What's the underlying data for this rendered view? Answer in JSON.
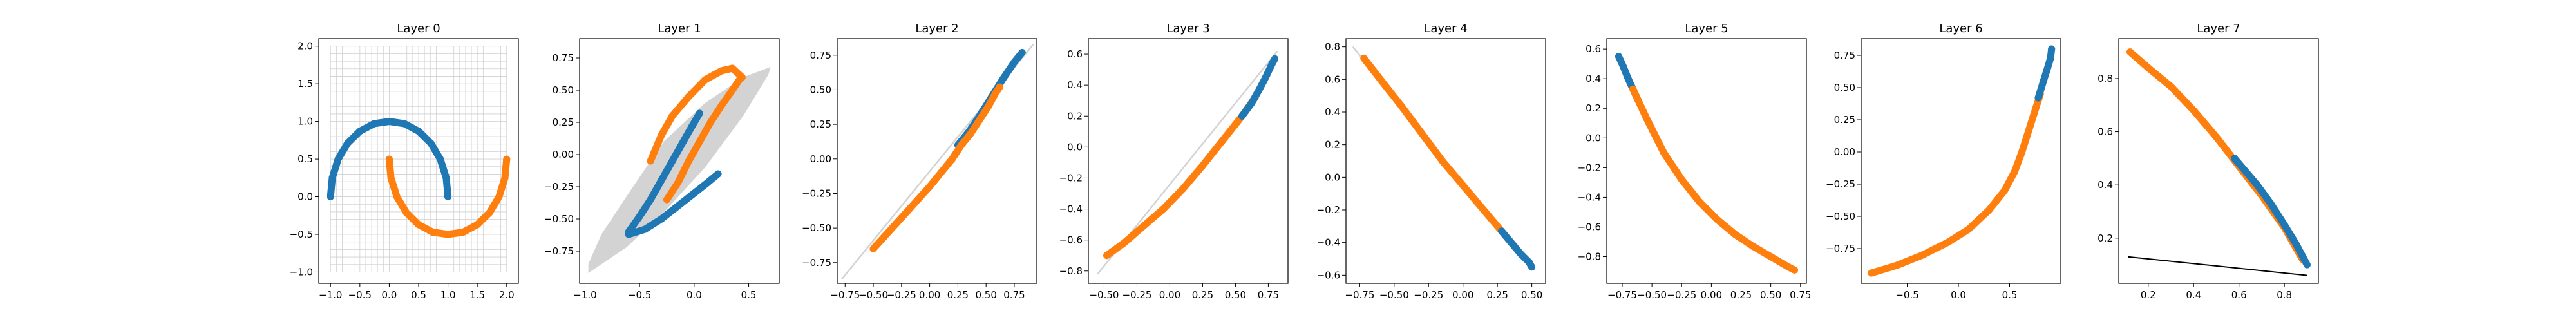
{
  "colors": {
    "blue": "#1f77b4",
    "orange": "#ff7f0e",
    "band": "#d3d3d3",
    "grid": "#cfcfcf",
    "line": "#000000"
  },
  "chart_data": [
    {
      "type": "scatter",
      "title": "Layer 0",
      "xlim": [
        -1.2,
        2.2
      ],
      "ylim": [
        -1.15,
        2.1
      ],
      "xticks": [
        -1.0,
        -0.5,
        0.0,
        0.5,
        1.0,
        1.5,
        2.0
      ],
      "yticks": [
        -1.0,
        -0.5,
        0.0,
        0.5,
        1.0,
        1.5,
        2.0
      ],
      "tick_labels_x": [
        "−1.0",
        "−0.5",
        "0.0",
        "0.5",
        "1.0",
        "1.5",
        "2.0"
      ],
      "tick_labels_y": [
        "−1.0",
        "−0.5",
        "0.0",
        "0.5",
        "1.0",
        "1.5",
        "2.0"
      ],
      "grid": {
        "xmin": -1.0,
        "xmax": 2.0,
        "ymin": -1.0,
        "ymax": 2.0,
        "step": 0.1
      },
      "series": [
        {
          "color": "blue",
          "points": [
            [
              -1.0,
              0.0
            ],
            [
              -0.97,
              0.25
            ],
            [
              -0.87,
              0.5
            ],
            [
              -0.71,
              0.71
            ],
            [
              -0.5,
              0.87
            ],
            [
              -0.26,
              0.97
            ],
            [
              0.0,
              1.0
            ],
            [
              0.26,
              0.97
            ],
            [
              0.5,
              0.87
            ],
            [
              0.71,
              0.71
            ],
            [
              0.87,
              0.5
            ],
            [
              0.97,
              0.25
            ],
            [
              1.0,
              0.0
            ]
          ]
        },
        {
          "color": "orange",
          "points": [
            [
              0.0,
              0.5
            ],
            [
              0.03,
              0.25
            ],
            [
              0.13,
              0.0
            ],
            [
              0.29,
              -0.21
            ],
            [
              0.5,
              -0.37
            ],
            [
              0.74,
              -0.47
            ],
            [
              1.0,
              -0.5
            ],
            [
              1.26,
              -0.47
            ],
            [
              1.5,
              -0.37
            ],
            [
              1.71,
              -0.21
            ],
            [
              1.87,
              0.0
            ],
            [
              1.97,
              0.25
            ],
            [
              2.0,
              0.5
            ]
          ]
        }
      ]
    },
    {
      "type": "scatter",
      "title": "Layer 1",
      "xlim": [
        -1.05,
        0.78
      ],
      "ylim": [
        -1.0,
        0.9
      ],
      "xticks": [
        -1.0,
        -0.5,
        0.0,
        0.5
      ],
      "yticks": [
        -0.75,
        -0.5,
        -0.25,
        0.0,
        0.25,
        0.5,
        0.75
      ],
      "tick_labels_x": [
        "−1.0",
        "−0.5",
        "0.0",
        "0.5"
      ],
      "tick_labels_y": [
        "−0.75",
        "−0.50",
        "−0.25",
        "0.00",
        "0.25",
        "0.50",
        "0.75"
      ],
      "band": [
        [
          -0.97,
          -0.92
        ],
        [
          -0.62,
          -0.72
        ],
        [
          -0.28,
          -0.45
        ],
        [
          0.1,
          -0.1
        ],
        [
          0.45,
          0.3
        ],
        [
          0.68,
          0.62
        ],
        [
          0.7,
          0.68
        ],
        [
          0.45,
          0.6
        ],
        [
          0.1,
          0.4
        ],
        [
          -0.28,
          0.1
        ],
        [
          -0.6,
          -0.3
        ],
        [
          -0.85,
          -0.62
        ],
        [
          -0.97,
          -0.85
        ]
      ],
      "series": [
        {
          "color": "blue",
          "points": [
            [
              -0.6,
              -0.6
            ],
            [
              -0.5,
              -0.48
            ],
            [
              -0.4,
              -0.35
            ],
            [
              -0.3,
              -0.2
            ],
            [
              -0.2,
              -0.05
            ],
            [
              -0.1,
              0.1
            ],
            [
              -0.02,
              0.22
            ],
            [
              0.05,
              0.32
            ]
          ]
        },
        {
          "color": "blue",
          "points": [
            [
              -0.6,
              -0.62
            ],
            [
              -0.45,
              -0.58
            ],
            [
              -0.3,
              -0.5
            ],
            [
              -0.15,
              -0.4
            ],
            [
              0.0,
              -0.3
            ],
            [
              0.12,
              -0.22
            ],
            [
              0.22,
              -0.15
            ]
          ]
        },
        {
          "color": "orange",
          "points": [
            [
              -0.4,
              -0.05
            ],
            [
              -0.3,
              0.15
            ],
            [
              -0.2,
              0.3
            ],
            [
              -0.05,
              0.45
            ],
            [
              0.1,
              0.58
            ],
            [
              0.25,
              0.65
            ],
            [
              0.35,
              0.67
            ],
            [
              0.44,
              0.6
            ]
          ]
        },
        {
          "color": "orange",
          "points": [
            [
              -0.25,
              -0.35
            ],
            [
              -0.15,
              -0.22
            ],
            [
              -0.05,
              -0.05
            ],
            [
              0.05,
              0.1
            ],
            [
              0.15,
              0.25
            ],
            [
              0.25,
              0.38
            ],
            [
              0.35,
              0.5
            ],
            [
              0.43,
              0.6
            ]
          ]
        }
      ]
    },
    {
      "type": "scatter",
      "title": "Layer 2",
      "xlim": [
        -0.82,
        0.95
      ],
      "ylim": [
        -0.9,
        0.87
      ],
      "xticks": [
        -0.75,
        -0.5,
        -0.25,
        0.0,
        0.25,
        0.5,
        0.75
      ],
      "yticks": [
        -0.75,
        -0.5,
        -0.25,
        0.0,
        0.25,
        0.5,
        0.75
      ],
      "tick_labels_x": [
        "−0.75",
        "−0.50",
        "−0.25",
        "0.00",
        "0.25",
        "0.50",
        "0.75"
      ],
      "tick_labels_y": [
        "−0.75",
        "−0.50",
        "−0.25",
        "0.00",
        "0.25",
        "0.50",
        "0.75"
      ],
      "line": [
        [
          -0.78,
          -0.87
        ],
        [
          0.92,
          0.83
        ]
      ],
      "series": [
        {
          "color": "blue",
          "points": [
            [
              0.25,
              0.1
            ],
            [
              0.35,
              0.2
            ],
            [
              0.45,
              0.32
            ],
            [
              0.55,
              0.45
            ],
            [
              0.65,
              0.58
            ],
            [
              0.75,
              0.7
            ],
            [
              0.82,
              0.77
            ]
          ]
        },
        {
          "color": "orange",
          "points": [
            [
              -0.5,
              -0.65
            ],
            [
              -0.4,
              -0.56
            ],
            [
              -0.3,
              -0.47
            ],
            [
              -0.2,
              -0.38
            ],
            [
              -0.1,
              -0.29
            ],
            [
              0.0,
              -0.2
            ],
            [
              0.1,
              -0.1
            ],
            [
              0.2,
              0.0
            ],
            [
              0.28,
              0.1
            ],
            [
              0.36,
              0.18
            ],
            [
              0.44,
              0.28
            ],
            [
              0.52,
              0.38
            ],
            [
              0.58,
              0.47
            ],
            [
              0.62,
              0.52
            ]
          ]
        }
      ]
    },
    {
      "type": "scatter",
      "title": "Layer 3",
      "xlim": [
        -0.62,
        0.9
      ],
      "ylim": [
        -0.88,
        0.7
      ],
      "xticks": [
        -0.5,
        -0.25,
        0.0,
        0.25,
        0.5,
        0.75
      ],
      "yticks": [
        -0.8,
        -0.6,
        -0.4,
        -0.2,
        0.0,
        0.2,
        0.4,
        0.6
      ],
      "tick_labels_x": [
        "−0.50",
        "−0.25",
        "0.00",
        "0.25",
        "0.50",
        "0.75"
      ],
      "tick_labels_y": [
        "−0.8",
        "−0.6",
        "−0.4",
        "−0.2",
        "0.0",
        "0.2",
        "0.4",
        "0.6"
      ],
      "line": [
        [
          -0.55,
          -0.82
        ],
        [
          0.82,
          0.62
        ]
      ],
      "series": [
        {
          "color": "orange",
          "points": [
            [
              -0.48,
              -0.7
            ],
            [
              -0.35,
              -0.62
            ],
            [
              -0.2,
              -0.51
            ],
            [
              -0.05,
              -0.4
            ],
            [
              0.1,
              -0.27
            ],
            [
              0.25,
              -0.12
            ],
            [
              0.4,
              0.04
            ],
            [
              0.55,
              0.2
            ],
            [
              0.65,
              0.32
            ]
          ]
        },
        {
          "color": "blue",
          "points": [
            [
              0.55,
              0.2
            ],
            [
              0.62,
              0.28
            ],
            [
              0.68,
              0.37
            ],
            [
              0.73,
              0.45
            ],
            [
              0.78,
              0.54
            ],
            [
              0.8,
              0.57
            ]
          ]
        }
      ]
    },
    {
      "type": "scatter",
      "title": "Layer 4",
      "xlim": [
        -0.85,
        0.6
      ],
      "ylim": [
        -0.65,
        0.85
      ],
      "xticks": [
        -0.75,
        -0.5,
        -0.25,
        0.0,
        0.25,
        0.5
      ],
      "yticks": [
        -0.6,
        -0.4,
        -0.2,
        0.0,
        0.2,
        0.4,
        0.6,
        0.8
      ],
      "tick_labels_x": [
        "−0.75",
        "−0.50",
        "−0.25",
        "0.00",
        "0.25",
        "0.50"
      ],
      "tick_labels_y": [
        "−0.6",
        "−0.4",
        "−0.2",
        "0.0",
        "0.2",
        "0.4",
        "0.6",
        "0.8"
      ],
      "line": [
        [
          -0.8,
          0.8
        ],
        [
          0.5,
          -0.55
        ]
      ],
      "series": [
        {
          "color": "orange",
          "points": [
            [
              -0.72,
              0.73
            ],
            [
              -0.6,
              0.6
            ],
            [
              -0.45,
              0.44
            ],
            [
              -0.3,
              0.27
            ],
            [
              -0.15,
              0.1
            ],
            [
              0.0,
              -0.05
            ],
            [
              0.15,
              -0.2
            ],
            [
              0.3,
              -0.35
            ],
            [
              0.38,
              -0.43
            ]
          ]
        },
        {
          "color": "blue",
          "points": [
            [
              0.28,
              -0.33
            ],
            [
              0.35,
              -0.4
            ],
            [
              0.42,
              -0.47
            ],
            [
              0.48,
              -0.52
            ],
            [
              0.5,
              -0.55
            ]
          ]
        }
      ]
    },
    {
      "type": "scatter",
      "title": "Layer 5",
      "xlim": [
        -0.88,
        0.8
      ],
      "ylim": [
        -0.98,
        0.67
      ],
      "xticks": [
        -0.75,
        -0.5,
        -0.25,
        0.0,
        0.25,
        0.5,
        0.75
      ],
      "yticks": [
        -0.8,
        -0.6,
        -0.4,
        -0.2,
        0.0,
        0.2,
        0.4,
        0.6
      ],
      "tick_labels_x": [
        "−0.75",
        "−0.50",
        "−0.25",
        "0.00",
        "0.25",
        "0.50",
        "0.75"
      ],
      "tick_labels_y": [
        "−0.8",
        "−0.6",
        "−0.4",
        "−0.2",
        "0.0",
        "0.2",
        "0.4",
        "0.6"
      ],
      "series": [
        {
          "color": "blue",
          "points": [
            [
              -0.78,
              0.55
            ],
            [
              -0.74,
              0.48
            ],
            [
              -0.7,
              0.4
            ],
            [
              -0.66,
              0.33
            ],
            [
              -0.62,
              0.26
            ]
          ]
        },
        {
          "color": "orange",
          "points": [
            [
              -0.66,
              0.33
            ],
            [
              -0.55,
              0.14
            ],
            [
              -0.4,
              -0.1
            ],
            [
              -0.25,
              -0.28
            ],
            [
              -0.1,
              -0.43
            ],
            [
              0.05,
              -0.55
            ],
            [
              0.2,
              -0.65
            ],
            [
              0.35,
              -0.73
            ],
            [
              0.5,
              -0.8
            ],
            [
              0.65,
              -0.87
            ],
            [
              0.7,
              -0.89
            ]
          ]
        }
      ]
    },
    {
      "type": "scatter",
      "title": "Layer 6",
      "xlim": [
        -0.95,
        1.0
      ],
      "ylim": [
        -1.02,
        0.88
      ],
      "xticks": [
        -0.5,
        0.0,
        0.5
      ],
      "yticks": [
        -0.75,
        -0.5,
        -0.25,
        0.0,
        0.25,
        0.5,
        0.75
      ],
      "tick_labels_x": [
        "−0.5",
        "0.0",
        "0.5"
      ],
      "tick_labels_y": [
        "−0.75",
        "−0.50",
        "−0.25",
        "0.00",
        "0.25",
        "0.50",
        "0.75"
      ],
      "series": [
        {
          "color": "orange",
          "points": [
            [
              -0.85,
              -0.94
            ],
            [
              -0.6,
              -0.88
            ],
            [
              -0.35,
              -0.8
            ],
            [
              -0.1,
              -0.7
            ],
            [
              0.1,
              -0.6
            ],
            [
              0.3,
              -0.45
            ],
            [
              0.45,
              -0.3
            ],
            [
              0.55,
              -0.15
            ],
            [
              0.62,
              0.0
            ],
            [
              0.7,
              0.2
            ],
            [
              0.76,
              0.35
            ],
            [
              0.8,
              0.45
            ]
          ]
        },
        {
          "color": "blue",
          "points": [
            [
              0.78,
              0.42
            ],
            [
              0.83,
              0.55
            ],
            [
              0.87,
              0.65
            ],
            [
              0.9,
              0.73
            ],
            [
              0.91,
              0.8
            ]
          ]
        }
      ]
    },
    {
      "type": "scatter",
      "title": "Layer 7",
      "xlim": [
        0.07,
        0.95
      ],
      "ylim": [
        0.03,
        0.95
      ],
      "xticks": [
        0.2,
        0.4,
        0.6,
        0.8
      ],
      "yticks": [
        0.2,
        0.4,
        0.6,
        0.8
      ],
      "tick_labels_x": [
        "0.2",
        "0.4",
        "0.6",
        "0.8"
      ],
      "tick_labels_y": [
        "0.2",
        "0.4",
        "0.6",
        "0.8"
      ],
      "line": [
        [
          0.11,
          0.13
        ],
        [
          0.9,
          0.06
        ]
      ],
      "series": [
        {
          "color": "orange",
          "points": [
            [
              0.12,
              0.9
            ],
            [
              0.2,
              0.84
            ],
            [
              0.3,
              0.77
            ],
            [
              0.4,
              0.68
            ],
            [
              0.5,
              0.58
            ],
            [
              0.6,
              0.47
            ],
            [
              0.7,
              0.36
            ],
            [
              0.8,
              0.24
            ],
            [
              0.88,
              0.12
            ]
          ]
        },
        {
          "color": "blue",
          "points": [
            [
              0.58,
              0.5
            ],
            [
              0.62,
              0.46
            ],
            [
              0.68,
              0.4
            ],
            [
              0.74,
              0.33
            ],
            [
              0.8,
              0.25
            ],
            [
              0.85,
              0.18
            ],
            [
              0.9,
              0.1
            ]
          ]
        }
      ]
    }
  ]
}
